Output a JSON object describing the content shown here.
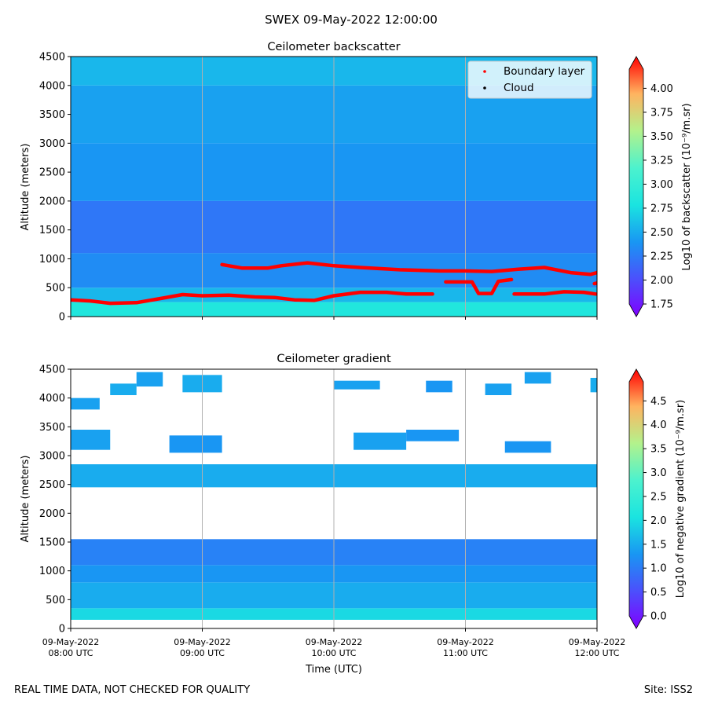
{
  "suptitle": "SWEX 09-May-2022 12:00:00",
  "footer_left": "REAL TIME DATA, NOT CHECKED FOR QUALITY",
  "footer_right": "Site: ISS2",
  "colors": {
    "boundary_layer": "#ff0000",
    "cloud": "#000000",
    "grid": "#b0b0b0"
  },
  "chart_data": [
    {
      "type": "heatmap",
      "title": "Ceilometer backscatter",
      "ylabel": "Altitude (meters)",
      "ylim": [
        0,
        4500
      ],
      "yticks": [
        0,
        500,
        1000,
        1500,
        2000,
        2500,
        3000,
        3500,
        4000,
        4500
      ],
      "x_start": "09-May-2022 08:00 UTC",
      "x_end": "09-May-2022 12:00 UTC",
      "grid": "vertical at hourly ticks",
      "colormap": "rainbow",
      "colorbar": {
        "label": "Log10 of backscatter (10⁻⁹/m.sr)",
        "range": [
          1.75,
          4.2
        ],
        "ticks": [
          "1.75",
          "2.00",
          "2.25",
          "2.50",
          "2.75",
          "3.00",
          "3.25",
          "3.50",
          "3.75",
          "4.00"
        ],
        "extend": "both"
      },
      "legend": {
        "placement": "top-right",
        "entries": [
          "Boundary layer",
          "Cloud"
        ]
      },
      "field_bands": [
        {
          "alt_min": 0,
          "alt_max": 250,
          "value": 2.85
        },
        {
          "alt_min": 250,
          "alt_max": 500,
          "value": 2.6
        },
        {
          "alt_min": 500,
          "alt_max": 1100,
          "value": 2.4
        },
        {
          "alt_min": 1100,
          "alt_max": 2000,
          "value": 2.3
        },
        {
          "alt_min": 2000,
          "alt_max": 3000,
          "value": 2.45
        },
        {
          "alt_min": 3000,
          "alt_max": 4000,
          "value": 2.5
        },
        {
          "alt_min": 4000,
          "alt_max": 4500,
          "value": 2.6
        }
      ],
      "boundary_layer": [
        {
          "x_hours": [
            8.0,
            8.15,
            8.3,
            8.5,
            8.7,
            8.85,
            9.0,
            9.2,
            9.4,
            9.55,
            9.7,
            9.85,
            10.0,
            10.2,
            10.4,
            10.55,
            10.75
          ],
          "altitude": [
            290,
            270,
            230,
            240,
            320,
            380,
            360,
            370,
            340,
            330,
            290,
            280,
            360,
            420,
            420,
            390,
            390
          ]
        },
        {
          "x_hours": [
            9.15,
            9.3,
            9.5,
            9.6,
            9.8,
            10.0,
            10.2,
            10.5,
            10.8,
            11.0,
            11.2,
            11.4,
            11.6,
            11.8,
            11.95,
            12.0
          ],
          "altitude": [
            900,
            840,
            840,
            880,
            930,
            880,
            850,
            810,
            790,
            790,
            780,
            820,
            850,
            760,
            730,
            760
          ]
        },
        {
          "x_hours": [
            10.85,
            11.05,
            11.1,
            11.2,
            11.25,
            11.35
          ],
          "altitude": [
            600,
            600,
            400,
            400,
            610,
            640
          ]
        },
        {
          "x_hours": [
            11.37,
            11.6,
            11.75,
            11.9,
            11.99
          ],
          "altitude": [
            390,
            390,
            430,
            420,
            390
          ]
        },
        {
          "x_hours": [
            11.98,
            12.0
          ],
          "altitude": [
            570,
            580
          ]
        }
      ],
      "cloud": []
    },
    {
      "type": "heatmap",
      "title": "Ceilometer gradient",
      "xlabel": "Time (UTC)",
      "ylabel": "Altitude (meters)",
      "ylim": [
        0,
        4500
      ],
      "yticks": [
        0,
        500,
        1000,
        1500,
        2000,
        2500,
        3000,
        3500,
        4000,
        4500
      ],
      "xticks": [
        {
          "hour": 8,
          "line1": "09-May-2022",
          "line2": "08:00 UTC"
        },
        {
          "hour": 9,
          "line1": "09-May-2022",
          "line2": "09:00 UTC"
        },
        {
          "hour": 10,
          "line1": "09-May-2022",
          "line2": "10:00 UTC"
        },
        {
          "hour": 11,
          "line1": "09-May-2022",
          "line2": "11:00 UTC"
        },
        {
          "hour": 12,
          "line1": "09-May-2022",
          "line2": "12:00 UTC"
        }
      ],
      "grid": "vertical at hourly ticks",
      "colormap": "rainbow",
      "colorbar": {
        "label": "Log10 of negative gradient (10⁻⁹/m.sr)",
        "range": [
          0,
          4.9
        ],
        "ticks": [
          "0.0",
          "0.5",
          "1.0",
          "1.5",
          "2.0",
          "2.5",
          "3.0",
          "3.5",
          "4.0",
          "4.5"
        ],
        "extend": "both"
      },
      "layers": [
        {
          "alt_min": 150,
          "alt_max": 350,
          "value": 2.0,
          "x_start": 8.0,
          "x_end": 12.0
        },
        {
          "alt_min": 350,
          "alt_max": 800,
          "value": 1.6,
          "x_start": 8.0,
          "x_end": 12.0
        },
        {
          "alt_min": 800,
          "alt_max": 1100,
          "value": 1.4,
          "x_start": 8.0,
          "x_end": 12.0
        },
        {
          "alt_min": 1100,
          "alt_max": 1550,
          "value": 1.2,
          "x_start": 8.0,
          "x_end": 12.0
        },
        {
          "alt_min": 2450,
          "alt_max": 2850,
          "value": 1.6,
          "x_start": 8.0,
          "x_end": 12.0
        },
        {
          "alt_min": 3100,
          "alt_max": 3450,
          "value": 1.5,
          "x_start": 8.0,
          "x_end": 8.3
        },
        {
          "alt_min": 3050,
          "alt_max": 3350,
          "value": 1.4,
          "x_start": 8.75,
          "x_end": 9.15
        },
        {
          "alt_min": 3100,
          "alt_max": 3400,
          "value": 1.5,
          "x_start": 10.15,
          "x_end": 10.55
        },
        {
          "alt_min": 3250,
          "alt_max": 3450,
          "value": 1.4,
          "x_start": 10.55,
          "x_end": 10.95
        },
        {
          "alt_min": 3050,
          "alt_max": 3250,
          "value": 1.4,
          "x_start": 11.3,
          "x_end": 11.65
        },
        {
          "alt_min": 3800,
          "alt_max": 4000,
          "value": 1.5,
          "x_start": 8.0,
          "x_end": 8.22
        },
        {
          "alt_min": 4050,
          "alt_max": 4250,
          "value": 1.6,
          "x_start": 8.3,
          "x_end": 8.5
        },
        {
          "alt_min": 4200,
          "alt_max": 4450,
          "value": 1.5,
          "x_start": 8.5,
          "x_end": 8.7
        },
        {
          "alt_min": 4100,
          "alt_max": 4400,
          "value": 1.6,
          "x_start": 8.85,
          "x_end": 9.15
        },
        {
          "alt_min": 4150,
          "alt_max": 4300,
          "value": 1.5,
          "x_start": 10.0,
          "x_end": 10.35
        },
        {
          "alt_min": 4100,
          "alt_max": 4300,
          "value": 1.4,
          "x_start": 10.7,
          "x_end": 10.9
        },
        {
          "alt_min": 4050,
          "alt_max": 4250,
          "value": 1.5,
          "x_start": 11.15,
          "x_end": 11.35
        },
        {
          "alt_min": 4250,
          "alt_max": 4450,
          "value": 1.5,
          "x_start": 11.45,
          "x_end": 11.65
        },
        {
          "alt_min": 4100,
          "alt_max": 4350,
          "value": 1.6,
          "x_start": 11.95,
          "x_end": 12.0
        }
      ]
    }
  ]
}
